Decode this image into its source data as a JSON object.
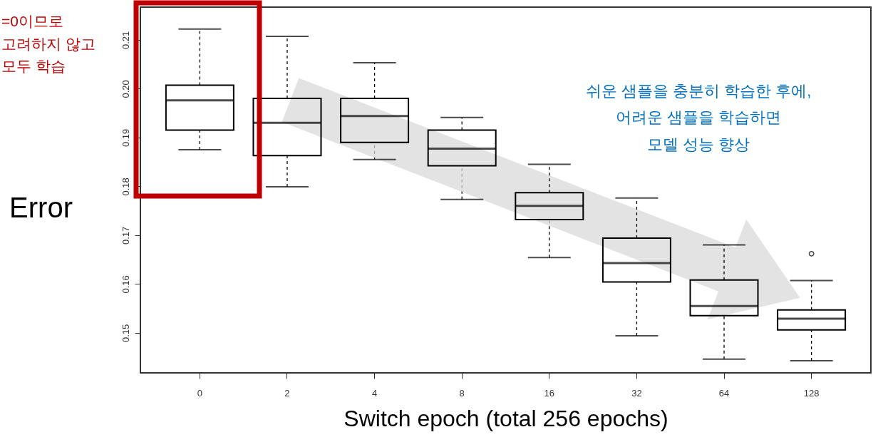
{
  "chart_data": {
    "type": "box",
    "xlabel": "Switch epoch (total 256 epochs)",
    "ylabel": "Error",
    "categories": [
      "0",
      "2",
      "4",
      "8",
      "16",
      "32",
      "64",
      "128"
    ],
    "series": [
      {
        "color": "#000000",
        "boxes": [
          {
            "low": 0.1875,
            "q1": 0.1915,
            "median": 0.1976,
            "q3": 0.2007,
            "high": 0.2122
          },
          {
            "low": 0.1799,
            "q1": 0.1863,
            "median": 0.193,
            "q3": 0.198,
            "high": 0.2107
          },
          {
            "low": 0.1855,
            "q1": 0.189,
            "median": 0.1944,
            "q3": 0.198,
            "high": 0.2053
          },
          {
            "low": 0.1773,
            "q1": 0.1842,
            "median": 0.1877,
            "q3": 0.1915,
            "high": 0.1941
          },
          {
            "low": 0.1654,
            "q1": 0.1732,
            "median": 0.176,
            "q3": 0.1787,
            "high": 0.1845
          },
          {
            "low": 0.1494,
            "q1": 0.1604,
            "median": 0.1643,
            "q3": 0.1694,
            "high": 0.1776
          },
          {
            "low": 0.1446,
            "q1": 0.1535,
            "median": 0.1555,
            "q3": 0.1608,
            "high": 0.168
          },
          {
            "low": 0.1443,
            "q1": 0.1506,
            "median": 0.1529,
            "q3": 0.1547,
            "high": 0.1607,
            "outliers": [
              0.1662
            ]
          }
        ]
      }
    ],
    "ylim": [
      0.1418,
      0.2167
    ],
    "yticks": [
      0.15,
      0.16,
      0.17,
      0.18,
      0.19,
      {
        "value": 0.2,
        "label": "0.20"
      },
      0.21
    ],
    "annotations": [
      "=0이므로\n고려하지 않고\n모두 학습",
      "쉬운 샘플을 충분히 학습한 후에,\n어려운 샘플을 학습하면\n모델 성능 향상"
    ]
  }
}
